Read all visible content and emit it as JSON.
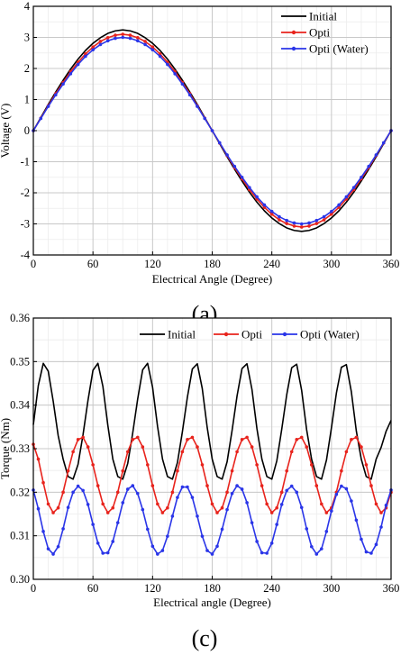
{
  "chart_data": [
    {
      "type": "line",
      "panel_label": "(a)",
      "title": "",
      "xlabel": "Electrical Angle (Degree)",
      "ylabel": "Voltage (V)",
      "xlim": [
        0,
        360
      ],
      "ylim": [
        -4,
        4
      ],
      "xticks": [
        0,
        60,
        120,
        180,
        240,
        300,
        360
      ],
      "yticks": [
        -4,
        -3,
        -2,
        -1,
        0,
        1,
        2,
        3,
        4
      ],
      "xtick_labels": [
        "0",
        "60",
        "120",
        "180",
        "240",
        "300",
        "360"
      ],
      "ytick_labels": [
        "-4",
        "-3",
        "-2",
        "-1",
        "0",
        "1",
        "2",
        "3",
        "4"
      ],
      "grid": true,
      "legend_position": "top-right",
      "x": [
        0,
        7.5,
        15,
        22.5,
        30,
        37.5,
        45,
        52.5,
        60,
        67.5,
        75,
        82.5,
        90,
        97.5,
        105,
        112.5,
        120,
        127.5,
        135,
        142.5,
        150,
        157.5,
        165,
        172.5,
        180,
        187.5,
        195,
        202.5,
        210,
        217.5,
        225,
        232.5,
        240,
        247.5,
        255,
        262.5,
        270,
        277.5,
        285,
        292.5,
        300,
        307.5,
        315,
        322.5,
        330,
        337.5,
        345,
        352.5,
        360
      ],
      "series": [
        {
          "name": "Initial",
          "color": "#000000",
          "marker": "none",
          "values": [
            0.0,
            0.42,
            0.84,
            1.24,
            1.62,
            1.98,
            2.3,
            2.58,
            2.81,
            2.99,
            3.13,
            3.21,
            3.24,
            3.21,
            3.13,
            2.99,
            2.81,
            2.58,
            2.3,
            1.98,
            1.62,
            1.24,
            0.84,
            0.42,
            0.0,
            -0.42,
            -0.84,
            -1.24,
            -1.62,
            -1.98,
            -2.3,
            -2.58,
            -2.81,
            -2.99,
            -3.13,
            -3.21,
            -3.24,
            -3.21,
            -3.13,
            -2.99,
            -2.81,
            -2.58,
            -2.3,
            -1.98,
            -1.62,
            -1.24,
            -0.84,
            -0.42,
            0.0
          ]
        },
        {
          "name": "Opti",
          "color": "#e8231c",
          "marker": "dot",
          "values": [
            0.0,
            0.4,
            0.8,
            1.19,
            1.55,
            1.9,
            2.2,
            2.47,
            2.69,
            2.87,
            2.99,
            3.07,
            3.1,
            3.07,
            2.99,
            2.87,
            2.69,
            2.47,
            2.2,
            1.9,
            1.55,
            1.19,
            0.8,
            0.4,
            0.0,
            -0.4,
            -0.8,
            -1.19,
            -1.55,
            -1.9,
            -2.2,
            -2.47,
            -2.69,
            -2.87,
            -2.99,
            -3.07,
            -3.1,
            -3.07,
            -2.99,
            -2.87,
            -2.69,
            -2.47,
            -2.2,
            -1.9,
            -1.55,
            -1.19,
            -0.8,
            -0.4,
            0.0
          ]
        },
        {
          "name": "Opti (Water)",
          "color": "#2a35e8",
          "marker": "dot",
          "values": [
            0.0,
            0.39,
            0.78,
            1.15,
            1.5,
            1.83,
            2.13,
            2.39,
            2.6,
            2.77,
            2.89,
            2.97,
            3.0,
            2.97,
            2.89,
            2.77,
            2.6,
            2.39,
            2.13,
            1.83,
            1.5,
            1.15,
            0.78,
            0.39,
            0.0,
            -0.39,
            -0.78,
            -1.15,
            -1.5,
            -1.83,
            -2.13,
            -2.39,
            -2.6,
            -2.77,
            -2.89,
            -2.97,
            -3.0,
            -2.97,
            -2.89,
            -2.77,
            -2.6,
            -2.39,
            -2.13,
            -1.83,
            -1.5,
            -1.15,
            -0.78,
            -0.39,
            0.0
          ]
        }
      ]
    },
    {
      "type": "line",
      "panel_label": "(c)",
      "title": "",
      "xlabel": "Electrical angle (Degree)",
      "ylabel": "Torque (Nm)",
      "xlim": [
        0,
        360
      ],
      "ylim": [
        0.3,
        0.36
      ],
      "xticks": [
        0,
        60,
        120,
        180,
        240,
        300,
        360
      ],
      "yticks": [
        0.3,
        0.31,
        0.32,
        0.33,
        0.34,
        0.35,
        0.36
      ],
      "xtick_labels": [
        "0",
        "60",
        "120",
        "180",
        "240",
        "300",
        "360"
      ],
      "ytick_labels": [
        "0.30",
        "0.31",
        "0.32",
        "0.33",
        "0.34",
        "0.35",
        "0.36"
      ],
      "grid": true,
      "legend_position": "top",
      "x": [
        0,
        5,
        10,
        15,
        20,
        25,
        30,
        35,
        40,
        45,
        50,
        55,
        60,
        65,
        70,
        75,
        80,
        85,
        90,
        95,
        100,
        105,
        110,
        115,
        120,
        125,
        130,
        135,
        140,
        145,
        150,
        155,
        160,
        165,
        170,
        175,
        180,
        185,
        190,
        195,
        200,
        205,
        210,
        215,
        220,
        225,
        230,
        235,
        240,
        245,
        250,
        255,
        260,
        265,
        270,
        275,
        280,
        285,
        290,
        295,
        300,
        305,
        310,
        315,
        320,
        325,
        330,
        335,
        340,
        345,
        350,
        355,
        360
      ],
      "series": [
        {
          "name": "Initial",
          "color": "#000000",
          "marker": "none",
          "values": [
            0.3355,
            0.3445,
            0.3496,
            0.3478,
            0.3409,
            0.333,
            0.3276,
            0.3236,
            0.323,
            0.3264,
            0.3332,
            0.3411,
            0.348,
            0.3496,
            0.3443,
            0.3353,
            0.3276,
            0.3236,
            0.323,
            0.3266,
            0.3336,
            0.3414,
            0.3481,
            0.3496,
            0.3441,
            0.3351,
            0.3276,
            0.3236,
            0.323,
            0.3268,
            0.3339,
            0.3418,
            0.3483,
            0.3495,
            0.3438,
            0.3348,
            0.3276,
            0.3236,
            0.323,
            0.327,
            0.3342,
            0.3421,
            0.3484,
            0.3495,
            0.3436,
            0.3346,
            0.3276,
            0.3236,
            0.323,
            0.3272,
            0.3345,
            0.3424,
            0.3486,
            0.3494,
            0.3434,
            0.3344,
            0.3276,
            0.3236,
            0.323,
            0.3274,
            0.3348,
            0.3428,
            0.3487,
            0.3493,
            0.3431,
            0.3341,
            0.3276,
            0.3236,
            0.323,
            0.3276,
            0.3303,
            0.334,
            0.3365
          ]
        },
        {
          "name": "Opti",
          "color": "#e8231c",
          "marker": "dot",
          "values": [
            0.331,
            0.3276,
            0.3222,
            0.3173,
            0.3153,
            0.3164,
            0.32,
            0.3249,
            0.3293,
            0.3321,
            0.3326,
            0.3304,
            0.3263,
            0.3215,
            0.3173,
            0.3153,
            0.3164,
            0.32,
            0.3249,
            0.3293,
            0.3321,
            0.3326,
            0.3304,
            0.3263,
            0.3215,
            0.3173,
            0.3153,
            0.3164,
            0.32,
            0.3249,
            0.3293,
            0.3321,
            0.3326,
            0.3304,
            0.3263,
            0.3215,
            0.3173,
            0.3153,
            0.3164,
            0.32,
            0.3249,
            0.3293,
            0.3321,
            0.3326,
            0.3304,
            0.3263,
            0.3215,
            0.3173,
            0.3153,
            0.3164,
            0.32,
            0.3249,
            0.3293,
            0.3321,
            0.3326,
            0.3304,
            0.3263,
            0.3215,
            0.3173,
            0.3153,
            0.3164,
            0.32,
            0.3249,
            0.3293,
            0.3321,
            0.3326,
            0.3304,
            0.3263,
            0.3215,
            0.3173,
            0.3153,
            0.3164,
            0.32
          ]
        },
        {
          "name": "Opti (Water)",
          "color": "#2a35e8",
          "marker": "dot",
          "values": [
            0.3205,
            0.3162,
            0.311,
            0.307,
            0.3058,
            0.3075,
            0.3116,
            0.3165,
            0.32,
            0.3214,
            0.3204,
            0.3172,
            0.3126,
            0.3083,
            0.306,
            0.3061,
            0.3087,
            0.313,
            0.3176,
            0.3207,
            0.3215,
            0.3197,
            0.316,
            0.3115,
            0.3076,
            0.3058,
            0.3066,
            0.3099,
            0.3145,
            0.3188,
            0.3212,
            0.3212,
            0.3188,
            0.3145,
            0.3099,
            0.3066,
            0.3058,
            0.3076,
            0.3115,
            0.316,
            0.3197,
            0.3215,
            0.3207,
            0.3176,
            0.313,
            0.3087,
            0.3061,
            0.306,
            0.3083,
            0.3126,
            0.3172,
            0.3204,
            0.3214,
            0.32,
            0.3165,
            0.3116,
            0.3075,
            0.3058,
            0.307,
            0.311,
            0.3157,
            0.3195,
            0.3214,
            0.3208,
            0.318,
            0.3136,
            0.3092,
            0.3063,
            0.306,
            0.308,
            0.312,
            0.317,
            0.3205
          ]
        }
      ]
    }
  ]
}
